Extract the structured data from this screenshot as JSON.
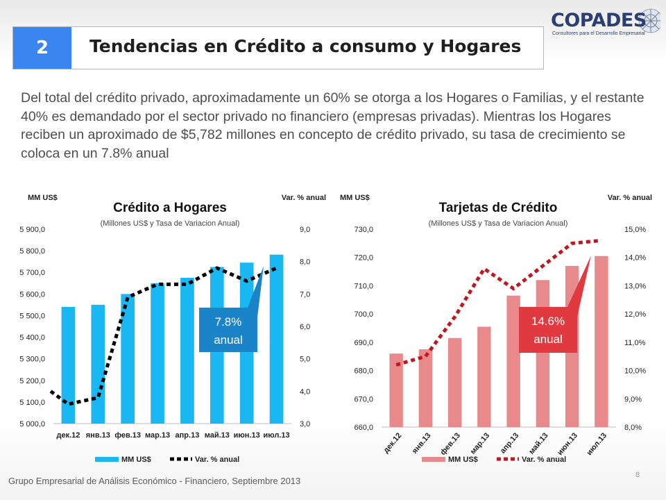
{
  "header": {
    "number": "2",
    "title": "Tendencias en Crédito a consumo y Hogares"
  },
  "logo": {
    "name": "COPADES",
    "tagline": "Consultores para el Desarrollo Empresarial"
  },
  "intro_text": "Del total del crédito privado, aproximadamente un 60% se otorga a los Hogares o Familias, y el restante 40% es demandado por el sector privado no financiero (empresas privadas). Mientras los Hogares reciben un aproximado de $5,782 millones en concepto de crédito privado, su tasa de crecimiento se coloca en un 7.8% anual",
  "footer": {
    "text": "Grupo Empresarial de Análisis Económico - Financiero, Septiembre 2013",
    "page": "8"
  },
  "chart_data": [
    {
      "type": "bar",
      "title": "Crédito a Hogares",
      "subtitle": "(Millones US$ y Tasa de Variacion Anual)",
      "ylabel_left": "MM US$",
      "ylabel_right": "Var. % anual",
      "categories": [
        "дек.12",
        "янв.13",
        "фев.13",
        "мар.13",
        "апр.13",
        "май.13",
        "июн.13",
        "июл.13"
      ],
      "ylim": [
        5000,
        5900
      ],
      "y_ticks": [
        "5 000,0",
        "5 100,0",
        "5 200,0",
        "5 300,0",
        "5 400,0",
        "5 500,0",
        "5 600,0",
        "5 700,0",
        "5 800,0",
        "5 900,0"
      ],
      "y2lim": [
        3,
        9
      ],
      "y2_ticks": [
        "3,0",
        "4,0",
        "5,0",
        "6,0",
        "7,0",
        "8,0",
        "9,0"
      ],
      "series": [
        {
          "name": "MM US$",
          "kind": "bar",
          "color": "#1ab8f3",
          "values": [
            5540,
            5550,
            5600,
            5650,
            5675,
            5725,
            5745,
            5782
          ]
        },
        {
          "name": "Var. % anual",
          "kind": "line",
          "axis": "right",
          "color": "#000000",
          "values": [
            3.6,
            3.8,
            6.9,
            7.3,
            7.3,
            7.8,
            7.4,
            7.8
          ]
        }
      ],
      "callout": {
        "line1": "7.8%",
        "line2": "anual",
        "color": "#1b84c9"
      },
      "grid": false,
      "legend": "bottom"
    },
    {
      "type": "bar",
      "title": "Tarjetas de Crédito",
      "subtitle": "(Millones US$ y Tasa de Variacion Anual)",
      "ylabel_left": "MM US$",
      "ylabel_right": "Var. % anual",
      "categories": [
        "дек.12",
        "янв.13",
        "фев.13",
        "мар.13",
        "апр.13",
        "май.13",
        "июн.13",
        "июл.13"
      ],
      "ylim": [
        660,
        730
      ],
      "y_ticks": [
        "660,0",
        "670,0",
        "680,0",
        "690,0",
        "700,0",
        "710,0",
        "720,0",
        "730,0"
      ],
      "y2lim": [
        8,
        15
      ],
      "y2_ticks": [
        "8,0%",
        "9,0%",
        "10,0%",
        "11,0%",
        "12,0%",
        "13,0%",
        "14,0%",
        "15,0%"
      ],
      "series": [
        {
          "name": "MM US$",
          "kind": "bar",
          "color": "#e8898c",
          "values": [
            686,
            687.5,
            691.5,
            695.5,
            706.5,
            712,
            717,
            720.5
          ]
        },
        {
          "name": "Var. % anual",
          "kind": "line",
          "axis": "right",
          "color": "#c0161e",
          "values": [
            10.2,
            10.5,
            11.9,
            13.6,
            12.9,
            13.7,
            14.5,
            14.6
          ]
        }
      ],
      "callout": {
        "line1": "14.6%",
        "line2": "anual",
        "color": "#e0393f"
      },
      "grid": false,
      "legend": "bottom"
    }
  ]
}
